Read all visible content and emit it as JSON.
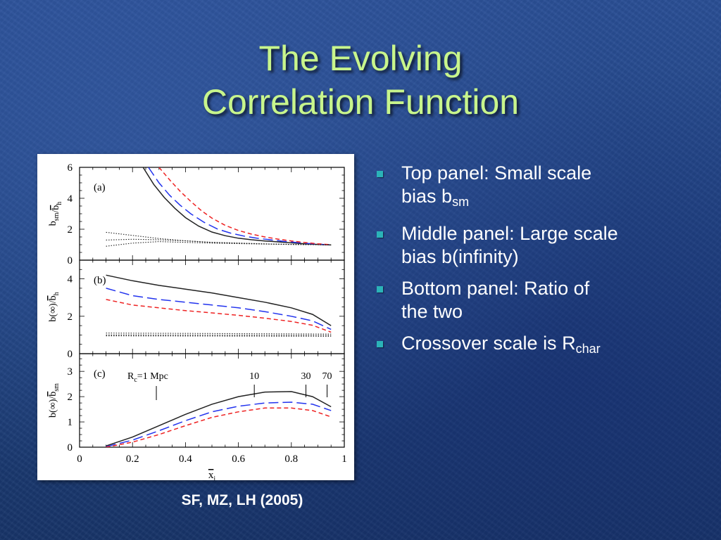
{
  "slide": {
    "title_line1": "The Evolving",
    "title_line2": "Correlation Function",
    "caption": "SF, MZ, LH (2005)",
    "bullets": [
      {
        "text": "Top panel: Small scale",
        "text2": "bias b",
        "sub": "sm"
      },
      {
        "text": "Middle panel: Large scale",
        "text2": "bias b(infinity)",
        "sub": ""
      },
      {
        "text": "Bottom panel: Ratio of",
        "text2": "the two",
        "sub": ""
      },
      {
        "text": "Crossover scale is R",
        "text2": "",
        "sub": "char"
      }
    ],
    "colors": {
      "title": "#c8f58c",
      "bullet_marker": "#2bb3b8",
      "text": "#ffffff"
    }
  },
  "chart_data": [
    {
      "type": "line",
      "panel_label": "(a)",
      "ylabel_main": "b",
      "ylabel_sub": "sm",
      "ylabel_mid": "/",
      "ylabel_bar": "b",
      "ylabel_bar_sub": "h",
      "ylim": [
        0,
        6
      ],
      "yticks": [
        "0",
        "2",
        "4",
        "6"
      ],
      "xlim": [
        0,
        1
      ],
      "series": [
        {
          "style": "solid",
          "color": "#222222",
          "x": [
            0.24,
            0.28,
            0.32,
            0.36,
            0.4,
            0.45,
            0.5,
            0.55,
            0.6,
            0.65,
            0.7,
            0.75,
            0.8,
            0.85,
            0.9,
            0.95
          ],
          "y": [
            6.0,
            4.9,
            4.05,
            3.35,
            2.75,
            2.2,
            1.82,
            1.58,
            1.42,
            1.32,
            1.24,
            1.18,
            1.12,
            1.06,
            1.02,
            0.98
          ]
        },
        {
          "style": "longdash",
          "color": "#2233ee",
          "x": [
            0.26,
            0.3,
            0.34,
            0.38,
            0.42,
            0.47,
            0.52,
            0.57,
            0.62,
            0.67,
            0.72,
            0.77,
            0.82,
            0.87,
            0.92,
            0.95
          ],
          "y": [
            6.0,
            5.0,
            4.2,
            3.55,
            3.0,
            2.45,
            2.02,
            1.75,
            1.56,
            1.42,
            1.32,
            1.22,
            1.14,
            1.07,
            1.02,
            1.0
          ]
        },
        {
          "style": "shortdash",
          "color": "#ee2222",
          "x": [
            0.3,
            0.34,
            0.38,
            0.42,
            0.46,
            0.5,
            0.55,
            0.6,
            0.65,
            0.7,
            0.75,
            0.8,
            0.85,
            0.9,
            0.95
          ],
          "y": [
            6.0,
            5.2,
            4.45,
            3.8,
            3.2,
            2.72,
            2.25,
            1.92,
            1.68,
            1.5,
            1.36,
            1.24,
            1.14,
            1.06,
            1.0
          ]
        },
        {
          "style": "dotted",
          "color": "#222222",
          "x": [
            0.1,
            0.2,
            0.3,
            0.4,
            0.5,
            0.6,
            0.7,
            0.8,
            0.9,
            0.95
          ],
          "y": [
            1.8,
            1.6,
            1.4,
            1.25,
            1.15,
            1.1,
            1.05,
            1.02,
            1.0,
            0.98
          ]
        },
        {
          "style": "dotted",
          "color": "#222222",
          "x": [
            0.1,
            0.2,
            0.3,
            0.4,
            0.5,
            0.6,
            0.7,
            0.8,
            0.9,
            0.95
          ],
          "y": [
            1.3,
            1.35,
            1.32,
            1.25,
            1.15,
            1.1,
            1.05,
            1.02,
            1.0,
            0.98
          ]
        },
        {
          "style": "dotted",
          "color": "#222222",
          "x": [
            0.1,
            0.2,
            0.3,
            0.4,
            0.5,
            0.6,
            0.7,
            0.8,
            0.9,
            0.95
          ],
          "y": [
            0.9,
            1.1,
            1.2,
            1.15,
            1.1,
            1.07,
            1.04,
            1.02,
            1.0,
            0.98
          ]
        }
      ]
    },
    {
      "type": "line",
      "panel_label": "(b)",
      "ylabel_main": "b(∞)",
      "ylabel_sub": "",
      "ylabel_mid": "/",
      "ylabel_bar": "b",
      "ylabel_bar_sub": "h",
      "ylim": [
        0,
        5
      ],
      "yticks": [
        "0",
        "2",
        "4"
      ],
      "xlim": [
        0,
        1
      ],
      "series": [
        {
          "style": "solid",
          "color": "#222222",
          "x": [
            0.1,
            0.2,
            0.3,
            0.4,
            0.5,
            0.6,
            0.7,
            0.8,
            0.88,
            0.95
          ],
          "y": [
            4.2,
            3.9,
            3.65,
            3.45,
            3.25,
            3.0,
            2.75,
            2.45,
            2.1,
            1.5
          ]
        },
        {
          "style": "longdash",
          "color": "#2233ee",
          "x": [
            0.1,
            0.2,
            0.3,
            0.4,
            0.5,
            0.6,
            0.7,
            0.8,
            0.88,
            0.95
          ],
          "y": [
            3.5,
            3.1,
            2.9,
            2.75,
            2.6,
            2.45,
            2.25,
            2.0,
            1.75,
            1.3
          ]
        },
        {
          "style": "shortdash",
          "color": "#ee2222",
          "x": [
            0.1,
            0.2,
            0.3,
            0.4,
            0.5,
            0.6,
            0.7,
            0.8,
            0.88,
            0.95
          ],
          "y": [
            2.9,
            2.6,
            2.45,
            2.3,
            2.18,
            2.05,
            1.9,
            1.72,
            1.52,
            1.15
          ]
        },
        {
          "style": "dotted",
          "color": "#222222",
          "x": [
            0.1,
            0.95
          ],
          "y": [
            1.1,
            1.05
          ]
        },
        {
          "style": "dotted",
          "color": "#222222",
          "x": [
            0.1,
            0.95
          ],
          "y": [
            1.0,
            0.98
          ]
        },
        {
          "style": "dotted",
          "color": "#222222",
          "x": [
            0.1,
            0.95
          ],
          "y": [
            0.95,
            0.93
          ]
        }
      ]
    },
    {
      "type": "line",
      "panel_label": "(c)",
      "ylabel_main": "b(∞)",
      "ylabel_sub": "",
      "ylabel_mid": "/",
      "ylabel_bar": "b",
      "ylabel_bar_sub": "sm",
      "ylim": [
        0,
        3.7
      ],
      "yticks": [
        "0",
        "1",
        "2",
        "3"
      ],
      "xlim": [
        0,
        1
      ],
      "xticks": [
        "0",
        "0.2",
        "0.4",
        "0.6",
        "0.8",
        "1"
      ],
      "xlabel_main": "x",
      "xlabel_sub": "i",
      "annotation_rc": "R",
      "annotation_rc_sub": "c",
      "annotation_rc_rest": "=1 Mpc",
      "annotations": [
        {
          "label": "10",
          "x": 0.66
        },
        {
          "label": "30",
          "x": 0.855
        },
        {
          "label": "70",
          "x": 0.935
        }
      ],
      "annotation_tick_rc_x": 0.29,
      "series": [
        {
          "style": "solid",
          "color": "#222222",
          "x": [
            0.1,
            0.2,
            0.3,
            0.4,
            0.5,
            0.6,
            0.7,
            0.8,
            0.88,
            0.95
          ],
          "y": [
            0.05,
            0.4,
            0.85,
            1.3,
            1.7,
            2.0,
            2.18,
            2.2,
            2.0,
            1.6
          ]
        },
        {
          "style": "longdash",
          "color": "#2233ee",
          "x": [
            0.1,
            0.2,
            0.3,
            0.4,
            0.5,
            0.6,
            0.7,
            0.8,
            0.88,
            0.95
          ],
          "y": [
            0.02,
            0.28,
            0.65,
            1.05,
            1.4,
            1.62,
            1.75,
            1.78,
            1.7,
            1.45
          ]
        },
        {
          "style": "shortdash",
          "color": "#ee2222",
          "x": [
            0.1,
            0.2,
            0.3,
            0.4,
            0.5,
            0.6,
            0.7,
            0.8,
            0.88,
            0.95
          ],
          "y": [
            0.0,
            0.2,
            0.5,
            0.85,
            1.18,
            1.4,
            1.55,
            1.55,
            1.45,
            1.2
          ]
        }
      ]
    }
  ]
}
